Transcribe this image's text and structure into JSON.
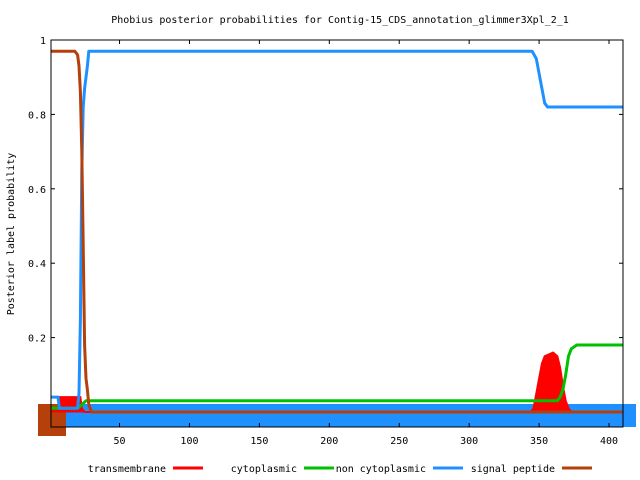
{
  "chart_data": {
    "type": "line",
    "title": "Phobius posterior probabilities for Contig-15_CDS_annotation_glimmer3Xpl_2_1",
    "xlabel": "",
    "ylabel": "Posterior label probability",
    "xlim": [
      1,
      410
    ],
    "ylim": [
      0,
      1
    ],
    "x_ticks": [
      50,
      100,
      150,
      200,
      250,
      300,
      350,
      400
    ],
    "y_ticks": [
      0.2,
      0.4,
      0.6,
      0.8,
      1
    ],
    "y_tick_labels": [
      "0.2",
      "0.4",
      "0.6",
      "0.8",
      "1"
    ],
    "grid": false,
    "legend": "bottom",
    "series": [
      {
        "name": "transmembrane",
        "style": "filled",
        "color": "#ff0000",
        "points": [
          [
            1,
            0
          ],
          [
            6,
            0.01
          ],
          [
            7,
            0.04
          ],
          [
            22,
            0.04
          ],
          [
            23,
            0.01
          ],
          [
            25,
            0
          ],
          [
            344,
            0
          ],
          [
            346,
            0.01
          ],
          [
            348,
            0.05
          ],
          [
            350,
            0.09
          ],
          [
            352,
            0.13
          ],
          [
            354,
            0.15
          ],
          [
            360,
            0.16
          ],
          [
            363,
            0.15
          ],
          [
            365,
            0.12
          ],
          [
            367,
            0.07
          ],
          [
            369,
            0.03
          ],
          [
            371,
            0.01
          ],
          [
            373,
            0
          ],
          [
            410,
            0
          ]
        ]
      },
      {
        "name": "cytoplasmic",
        "style": "line",
        "color": "#00c000",
        "points": [
          [
            1,
            0.01
          ],
          [
            20,
            0.01
          ],
          [
            23,
            0.02
          ],
          [
            26,
            0.03
          ],
          [
            350,
            0.03
          ],
          [
            360,
            0.03
          ],
          [
            363,
            0.03
          ],
          [
            365,
            0.04
          ],
          [
            367,
            0.06
          ],
          [
            369,
            0.1
          ],
          [
            371,
            0.15
          ],
          [
            373,
            0.17
          ],
          [
            377,
            0.18
          ],
          [
            385,
            0.18
          ],
          [
            410,
            0.18
          ]
        ]
      },
      {
        "name": "non cytoplasmic",
        "style": "line",
        "color": "#1e90ff",
        "points": [
          [
            1,
            0.04
          ],
          [
            6,
            0.04
          ],
          [
            7,
            0.01
          ],
          [
            20,
            0.01
          ],
          [
            21,
            0.05
          ],
          [
            22,
            0.25
          ],
          [
            23,
            0.65
          ],
          [
            24,
            0.82
          ],
          [
            25,
            0.87
          ],
          [
            27,
            0.93
          ],
          [
            28,
            0.97
          ],
          [
            340,
            0.97
          ],
          [
            345,
            0.97
          ],
          [
            348,
            0.95
          ],
          [
            350,
            0.91
          ],
          [
            352,
            0.87
          ],
          [
            354,
            0.83
          ],
          [
            356,
            0.82
          ],
          [
            360,
            0.82
          ],
          [
            370,
            0.82
          ],
          [
            410,
            0.82
          ]
        ]
      },
      {
        "name": "signal peptide",
        "style": "line",
        "color": "#b5400b",
        "points": [
          [
            1,
            0.97
          ],
          [
            18,
            0.97
          ],
          [
            20,
            0.96
          ],
          [
            21,
            0.93
          ],
          [
            22,
            0.86
          ],
          [
            23,
            0.7
          ],
          [
            24,
            0.45
          ],
          [
            25,
            0.18
          ],
          [
            26,
            0.09
          ],
          [
            27,
            0.06
          ],
          [
            28,
            0.02
          ],
          [
            29,
            0.01
          ],
          [
            30,
            0
          ],
          [
            410,
            0
          ]
        ]
      }
    ]
  }
}
